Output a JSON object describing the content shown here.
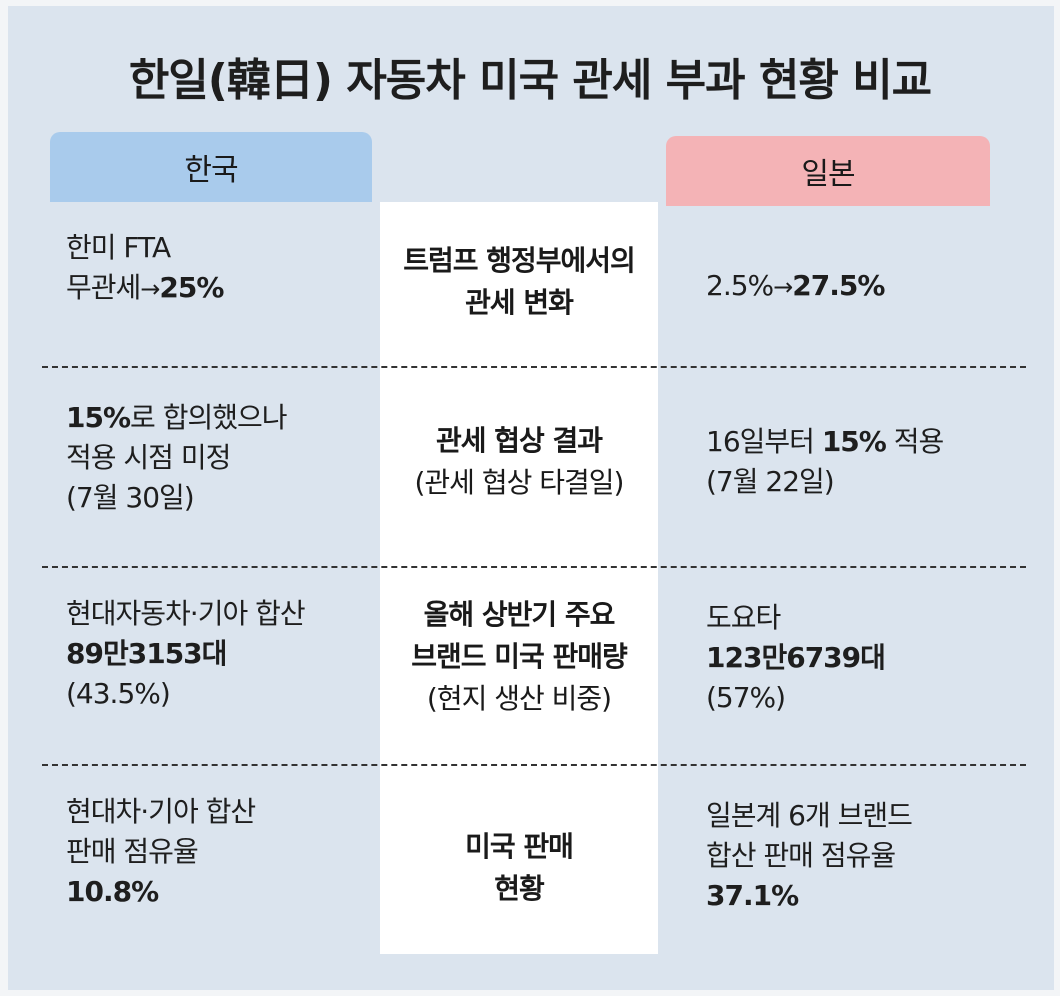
{
  "title": "한일(韓日) 자동차 미국 관세 부과 현황 비교",
  "columns": {
    "korea": "한국",
    "japan": "일본"
  },
  "rows": [
    {
      "korea": {
        "line1": "한미 FTA",
        "line2_prefix": "무관세",
        "arrow": "→",
        "line2_bold": "25%"
      },
      "center": {
        "line1": "트럼프 행정부에서의",
        "line2": "관세 변화"
      },
      "japan": {
        "prefix": "2.5%",
        "arrow": "→",
        "bold": "27.5%"
      }
    },
    {
      "korea": {
        "bold": "15%",
        "line1_suffix": "로 합의했으나",
        "line2": "적용 시점 미정",
        "line3": "(7월 30일)"
      },
      "center": {
        "line1": "관세 협상 결과",
        "line2": "(관세 협상 타결일)"
      },
      "japan": {
        "line1_prefix": "16일부터 ",
        "bold": "15%",
        "line1_suffix": " 적용",
        "line2": "(7월 22일)"
      }
    },
    {
      "korea": {
        "line1": "현대자동차·기아 합산",
        "line2": "89만3153대",
        "line3": "(43.5%)"
      },
      "center": {
        "line1": "올해 상반기 주요",
        "line2": "브랜드 미국 판매량",
        "line3": "(현지 생산 비중)"
      },
      "japan": {
        "line1": "도요타",
        "line2": "123만6739대",
        "line3": "(57%)"
      }
    },
    {
      "korea": {
        "line1": "현대차·기아 합산",
        "line2": "판매 점유율",
        "line3": "10.8%"
      },
      "center": {
        "line1": "미국 판매",
        "line2": "현황"
      },
      "japan": {
        "line1": "일본계 6개 브랜드",
        "line2": "합산 판매 점유율",
        "line3": "37.1%"
      }
    }
  ],
  "colors": {
    "background": "#dbe4ee",
    "korea_header": "#a9cbec",
    "japan_header": "#f4b3b6",
    "center_column": "#ffffff"
  }
}
